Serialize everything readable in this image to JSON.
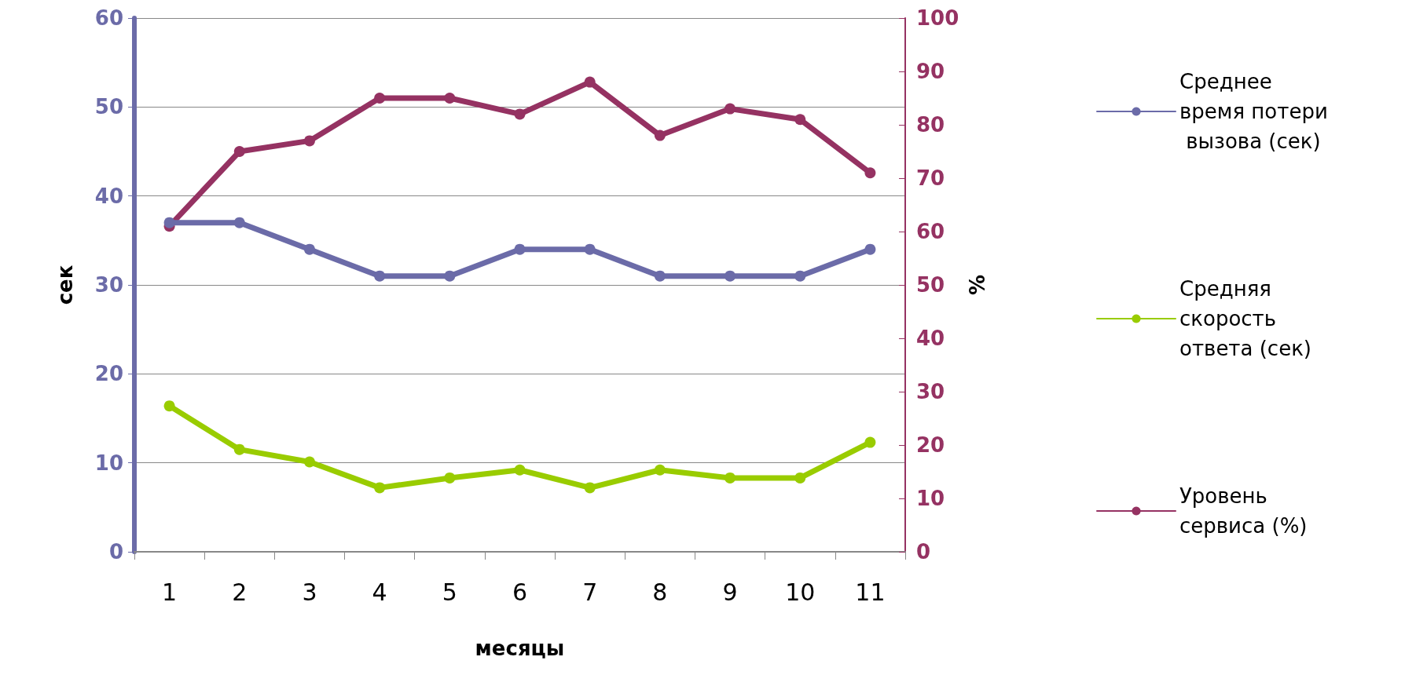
{
  "chart_data": {
    "type": "line",
    "xlabel": "месяцы",
    "ylabel": "сек",
    "y2label": "%",
    "categories": [
      "1",
      "2",
      "3",
      "4",
      "5",
      "6",
      "7",
      "8",
      "9",
      "10",
      "11"
    ],
    "series": [
      {
        "name": "Среднее время потери вызова (сек)",
        "color": "#6b6ba8",
        "values": [
          37,
          37,
          34,
          31,
          31,
          34,
          34,
          31,
          31,
          31,
          34
        ]
      },
      {
        "name": "Средняя скорость ответа (сек)",
        "color": "#99cc00",
        "values": [
          16.4,
          11.5,
          10.1,
          7.2,
          8.3,
          9.2,
          7.2,
          9.2,
          8.3,
          8.3,
          12.3
        ]
      },
      {
        "name": "Уровень сервиса (%)",
        "color": "#953262",
        "axis": "y2",
        "values": [
          61,
          75,
          77,
          85,
          85,
          82,
          88,
          78,
          83,
          81,
          71
        ]
      }
    ],
    "ylim": [
      0,
      60
    ],
    "yticks": [
      0,
      10,
      20,
      30,
      40,
      50,
      60
    ],
    "y2lim": [
      0,
      100
    ],
    "y2ticks": [
      0,
      10,
      20,
      30,
      40,
      50,
      60,
      70,
      80,
      90,
      100
    ],
    "grid": "y",
    "legend": "right",
    "marker": "circle",
    "line_style": "solid"
  }
}
